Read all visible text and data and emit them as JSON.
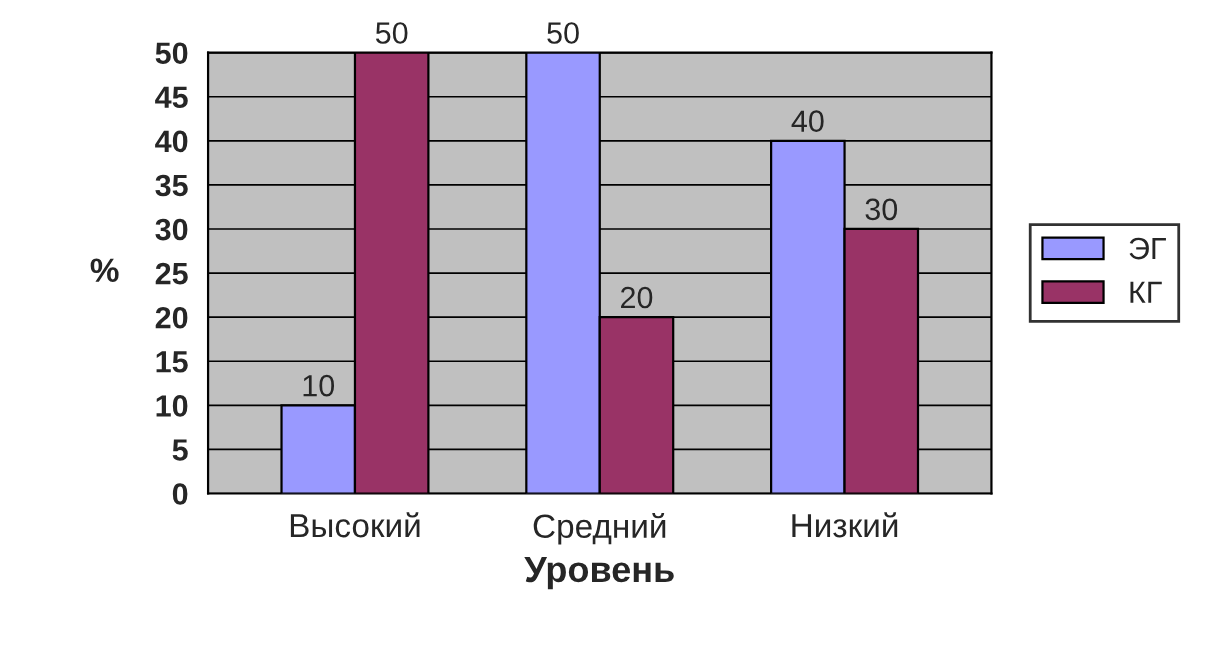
{
  "chart_data": {
    "type": "bar",
    "xlabel": "Уровень",
    "ylabel": "%",
    "categories": [
      "Высокий",
      "Средний",
      "Низкий"
    ],
    "series": [
      {
        "name": "ЭГ",
        "color": "#9999ff",
        "values": [
          10,
          50,
          40
        ]
      },
      {
        "name": "КГ",
        "color": "#993366",
        "values": [
          50,
          20,
          30
        ]
      }
    ],
    "ylim": [
      0,
      50
    ],
    "yticks": [
      0,
      5,
      10,
      15,
      20,
      25,
      30,
      35,
      40,
      45,
      50
    ],
    "grid": "y",
    "legend": "right",
    "data_labels": true
  }
}
